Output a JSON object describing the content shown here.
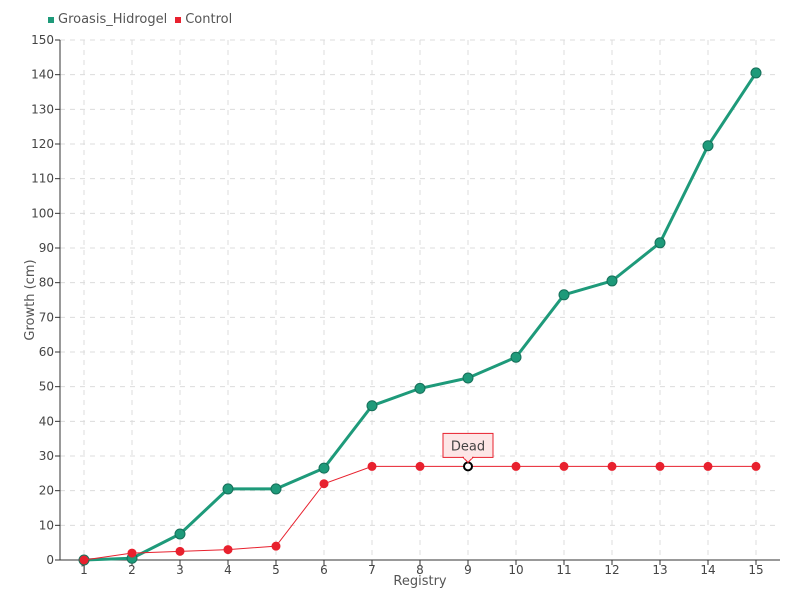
{
  "chart_data": {
    "type": "line",
    "x": [
      1,
      2,
      3,
      4,
      5,
      6,
      7,
      8,
      9,
      10,
      11,
      12,
      13,
      14,
      15
    ],
    "series": [
      {
        "name": "Groasis_Hidrogel",
        "color": "#1e9a7a",
        "values": [
          0,
          0.5,
          7.5,
          20.5,
          20.5,
          26.5,
          44.5,
          49.5,
          52.5,
          58.5,
          76.5,
          80.5,
          91.5,
          119.5,
          140.5
        ]
      },
      {
        "name": "Control",
        "color": "#e8212e",
        "values": [
          0,
          2,
          2.5,
          3,
          4,
          22,
          27,
          27,
          27,
          27,
          27,
          27,
          27,
          27,
          27
        ]
      }
    ],
    "xlabel": "Registry",
    "ylabel": "Growth (cm)",
    "xticks": [
      "1",
      "2",
      "3",
      "4",
      "5",
      "6",
      "7",
      "8",
      "9",
      "10",
      "11",
      "12",
      "13",
      "14",
      "15"
    ],
    "yticks": [
      "0",
      "10",
      "20",
      "30",
      "40",
      "50",
      "60",
      "70",
      "80",
      "90",
      "100",
      "110",
      "120",
      "130",
      "140",
      "150"
    ],
    "ylim": [
      0,
      150
    ],
    "grid": true,
    "legend_position": "top-left",
    "annotation": {
      "text": "Dead",
      "series": "Control",
      "x": 9,
      "y": 27,
      "background": "#fde6e6",
      "border": "#e8212e"
    }
  }
}
